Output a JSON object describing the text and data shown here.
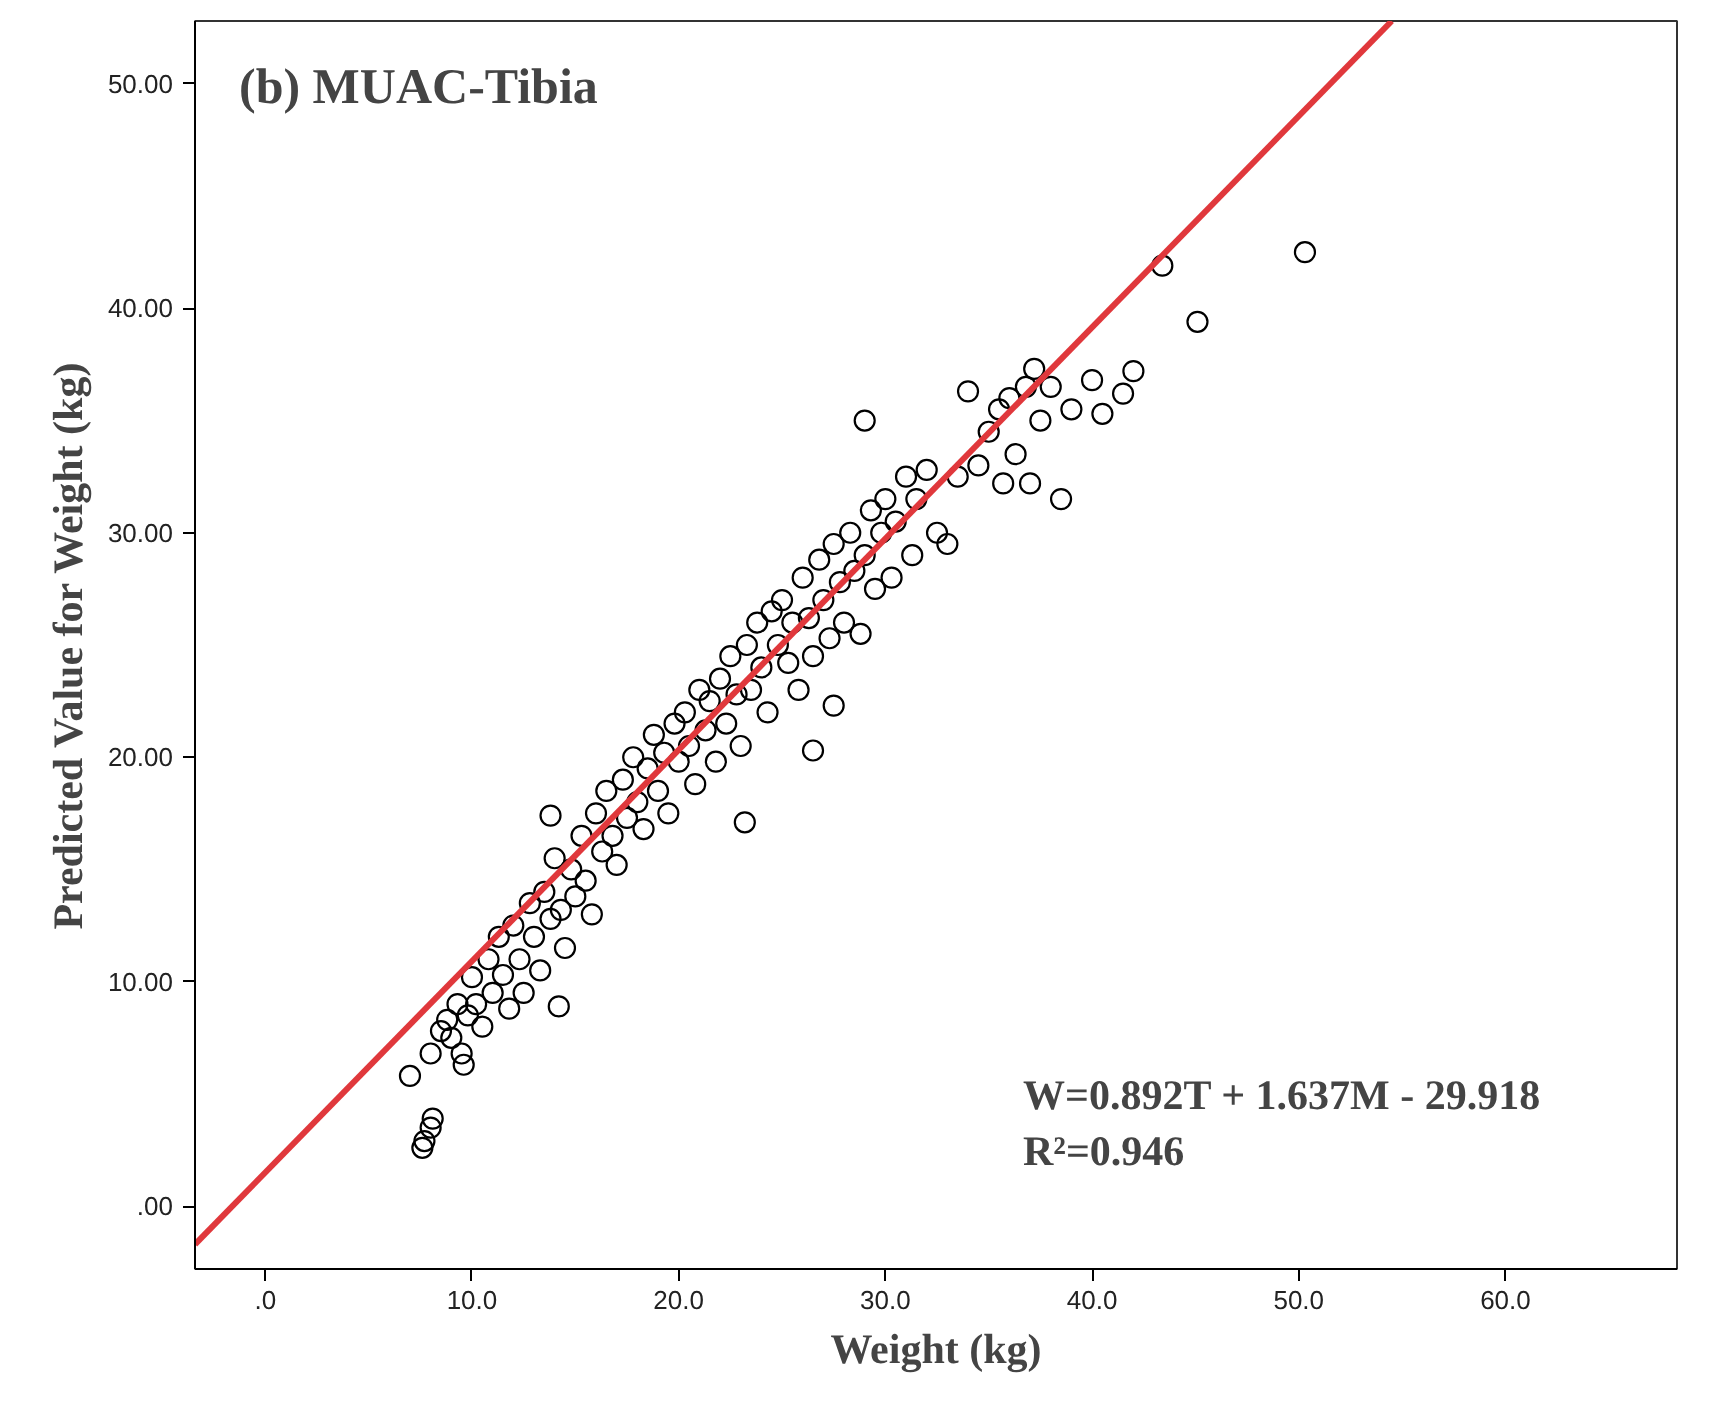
{
  "chart_data": {
    "type": "scatter",
    "title": "(b) MUAC-Tibia",
    "xlabel": "Weight (kg)",
    "ylabel": "Predicted Value for Weight (kg)",
    "annotations": [
      "W=0.892T + 1.637M - 29.918",
      "R²=0.946"
    ],
    "xlim": [
      -3.4,
      68.3
    ],
    "ylim": [
      -2.8,
      52.8
    ],
    "xticks": [
      {
        "value": 0,
        "label": ".0"
      },
      {
        "value": 10,
        "label": "10.0"
      },
      {
        "value": 20,
        "label": "20.0"
      },
      {
        "value": 30,
        "label": "30.0"
      },
      {
        "value": 40,
        "label": "40.0"
      },
      {
        "value": 50,
        "label": "50.0"
      },
      {
        "value": 60,
        "label": "60.0"
      }
    ],
    "yticks": [
      {
        "value": 0,
        "label": ".00"
      },
      {
        "value": 10,
        "label": "10.00"
      },
      {
        "value": 20,
        "label": "20.00"
      },
      {
        "value": 30,
        "label": "30.00"
      },
      {
        "value": 40,
        "label": "40.00"
      },
      {
        "value": 50,
        "label": "50.00"
      }
    ],
    "grid": false,
    "marker": "circle",
    "series": [
      {
        "color": "#000000",
        "x": [
          7.0,
          7.6,
          7.7,
          8.0,
          8.1,
          8.0,
          8.5,
          8.8,
          9.0,
          9.3,
          9.5,
          9.6,
          9.8,
          10.0,
          10.2,
          10.5,
          10.8,
          11.0,
          11.3,
          11.5,
          11.8,
          12.0,
          12.3,
          12.5,
          12.8,
          13.0,
          13.3,
          13.5,
          13.8,
          13.8,
          14.0,
          14.2,
          14.3,
          14.5,
          14.8,
          15.0,
          15.3,
          15.5,
          15.8,
          16.0,
          16.3,
          16.5,
          16.8,
          17.0,
          17.3,
          17.5,
          17.8,
          18.0,
          18.3,
          18.5,
          18.8,
          19.0,
          19.3,
          19.5,
          19.8,
          20.0,
          20.3,
          20.5,
          20.8,
          21.0,
          21.3,
          21.5,
          21.8,
          22.0,
          22.3,
          22.5,
          22.8,
          23.0,
          23.2,
          23.3,
          23.5,
          23.8,
          24.0,
          24.3,
          24.5,
          24.8,
          25.0,
          25.3,
          25.5,
          25.8,
          26.0,
          26.3,
          26.5,
          26.5,
          26.8,
          27.0,
          27.3,
          27.5,
          27.5,
          27.8,
          28.0,
          28.3,
          28.5,
          28.8,
          29.0,
          29.0,
          29.3,
          29.5,
          29.8,
          30.0,
          30.3,
          30.5,
          31.0,
          31.3,
          31.5,
          32.0,
          32.5,
          33.0,
          33.5,
          34.0,
          34.5,
          35.0,
          35.5,
          35.7,
          36.0,
          36.3,
          36.8,
          37.0,
          37.2,
          37.5,
          38.0,
          38.5,
          39.0,
          40.0,
          40.5,
          41.5,
          42.0,
          43.4,
          45.1,
          50.3
        ],
        "values": [
          5.8,
          2.6,
          2.9,
          3.5,
          3.9,
          6.8,
          7.8,
          8.3,
          7.5,
          9.0,
          6.8,
          6.3,
          8.5,
          10.2,
          9.0,
          8.0,
          11.0,
          9.5,
          12.0,
          10.3,
          8.8,
          12.5,
          11.0,
          9.5,
          13.5,
          12.0,
          10.5,
          14.0,
          12.8,
          17.4,
          15.5,
          8.9,
          13.2,
          11.5,
          15.0,
          13.8,
          16.5,
          14.5,
          13.0,
          17.5,
          15.8,
          18.5,
          16.5,
          15.2,
          19.0,
          17.3,
          20.0,
          18.0,
          16.8,
          19.5,
          21.0,
          18.5,
          20.2,
          17.5,
          21.5,
          19.8,
          22.0,
          20.5,
          18.8,
          23.0,
          21.2,
          22.5,
          19.8,
          23.5,
          21.5,
          24.5,
          22.8,
          20.5,
          17.1,
          25.0,
          23.0,
          26.0,
          24.0,
          22.0,
          26.5,
          25.0,
          27.0,
          24.2,
          26.0,
          23.0,
          28.0,
          26.2,
          24.5,
          20.3,
          28.8,
          27.0,
          25.3,
          29.5,
          22.3,
          27.8,
          26.0,
          30.0,
          28.3,
          25.5,
          29.0,
          35.0,
          31.0,
          27.5,
          30.0,
          31.5,
          28.0,
          30.5,
          32.5,
          29.0,
          31.5,
          32.8,
          30.0,
          29.5,
          32.5,
          36.3,
          33.0,
          34.5,
          35.5,
          32.2,
          36.0,
          33.5,
          36.5,
          32.2,
          37.3,
          35.0,
          36.5,
          31.5,
          35.5,
          36.8,
          35.3,
          36.2,
          37.2,
          41.9,
          39.4,
          42.5
        ]
      },
      {
        "type": "line",
        "marker": "none",
        "color": "#e0383c",
        "x": [
          -3.4,
          54.5
        ],
        "values": [
          -1.7,
          52.8
        ]
      }
    ]
  }
}
